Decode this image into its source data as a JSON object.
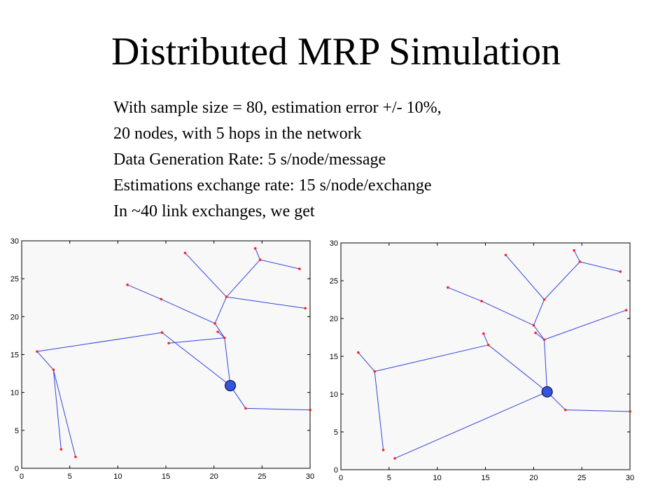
{
  "slide": {
    "title": "Distributed MRP Simulation",
    "description": [
      "With sample size = 80, estimation error +/- 10%,",
      "20 nodes, with 5 hops in the network",
      "Data Generation Rate:  5 s/node/message",
      "Estimations exchange rate:  15 s/node/exchange",
      "In ~40 link exchanges, we get"
    ]
  },
  "colors": {
    "edge": "#3344dd",
    "node": "#ff2222",
    "root_fill": "#3355dd",
    "root_stroke": "#000033",
    "plot_bg": "#f8f8f8"
  },
  "plots": [
    {
      "id": "left",
      "xlim": [
        0,
        30
      ],
      "ylim": [
        0,
        30
      ],
      "xticks": [
        "0",
        "5",
        "10",
        "15",
        "20",
        "25",
        "30"
      ],
      "yticks": [
        "0",
        "5",
        "10",
        "15",
        "20",
        "25",
        "30"
      ],
      "root": [
        21.7,
        10.9
      ],
      "nodes": [
        [
          1.6,
          15.4
        ],
        [
          3.3,
          13.0
        ],
        [
          4.1,
          2.5
        ],
        [
          5.6,
          1.5
        ],
        [
          11.0,
          24.2
        ],
        [
          14.5,
          22.3
        ],
        [
          14.6,
          17.9
        ],
        [
          15.3,
          16.5
        ],
        [
          17.0,
          28.4
        ],
        [
          20.1,
          19.1
        ],
        [
          20.4,
          18.0
        ],
        [
          21.1,
          17.2
        ],
        [
          21.3,
          22.6
        ],
        [
          23.3,
          7.9
        ],
        [
          24.3,
          29.0
        ],
        [
          24.8,
          27.5
        ],
        [
          28.9,
          26.3
        ],
        [
          29.5,
          21.1
        ],
        [
          30.0,
          7.7
        ]
      ],
      "edges": [
        [
          [
            1.6,
            15.4
          ],
          [
            14.6,
            17.9
          ]
        ],
        [
          [
            14.6,
            17.9
          ],
          [
            21.7,
            10.9
          ]
        ],
        [
          [
            1.6,
            15.4
          ],
          [
            3.3,
            13.0
          ]
        ],
        [
          [
            3.3,
            13.0
          ],
          [
            4.1,
            2.5
          ]
        ],
        [
          [
            3.3,
            13.0
          ],
          [
            5.6,
            1.5
          ]
        ],
        [
          [
            11.0,
            24.2
          ],
          [
            14.5,
            22.3
          ]
        ],
        [
          [
            14.5,
            22.3
          ],
          [
            20.1,
            19.1
          ]
        ],
        [
          [
            17.0,
            28.4
          ],
          [
            21.3,
            22.6
          ]
        ],
        [
          [
            20.1,
            19.1
          ],
          [
            21.3,
            22.6
          ]
        ],
        [
          [
            20.1,
            19.1
          ],
          [
            21.1,
            17.2
          ]
        ],
        [
          [
            20.4,
            18.0
          ],
          [
            21.1,
            17.2
          ]
        ],
        [
          [
            15.3,
            16.5
          ],
          [
            21.1,
            17.2
          ]
        ],
        [
          [
            21.1,
            17.2
          ],
          [
            21.7,
            10.9
          ]
        ],
        [
          [
            21.3,
            22.6
          ],
          [
            24.8,
            27.5
          ]
        ],
        [
          [
            24.3,
            29.0
          ],
          [
            24.8,
            27.5
          ]
        ],
        [
          [
            24.8,
            27.5
          ],
          [
            28.9,
            26.3
          ]
        ],
        [
          [
            21.3,
            22.6
          ],
          [
            29.5,
            21.1
          ]
        ],
        [
          [
            21.7,
            10.9
          ],
          [
            23.3,
            7.9
          ]
        ],
        [
          [
            23.3,
            7.9
          ],
          [
            30.0,
            7.7
          ]
        ]
      ]
    },
    {
      "id": "right",
      "xlim": [
        0,
        30
      ],
      "ylim": [
        0,
        30
      ],
      "xticks": [
        "0",
        "5",
        "10",
        "15",
        "20",
        "25",
        "30"
      ],
      "yticks": [
        "0",
        "5",
        "10",
        "15",
        "20",
        "25",
        "30"
      ],
      "root": [
        21.4,
        10.3
      ],
      "nodes": [
        [
          1.8,
          15.5
        ],
        [
          3.5,
          13.0
        ],
        [
          4.4,
          2.6
        ],
        [
          5.6,
          1.5
        ],
        [
          11.1,
          24.1
        ],
        [
          14.6,
          22.3
        ],
        [
          14.8,
          18.0
        ],
        [
          15.3,
          16.5
        ],
        [
          17.1,
          28.4
        ],
        [
          20.0,
          19.1
        ],
        [
          20.2,
          18.1
        ],
        [
          21.1,
          17.2
        ],
        [
          21.1,
          22.5
        ],
        [
          23.3,
          7.9
        ],
        [
          24.2,
          29.0
        ],
        [
          24.8,
          27.5
        ],
        [
          29.0,
          26.2
        ],
        [
          29.6,
          21.1
        ],
        [
          30.0,
          7.7
        ]
      ],
      "edges": [
        [
          [
            1.8,
            15.5
          ],
          [
            3.5,
            13.0
          ]
        ],
        [
          [
            3.5,
            13.0
          ],
          [
            4.4,
            2.6
          ]
        ],
        [
          [
            3.5,
            13.0
          ],
          [
            15.3,
            16.5
          ]
        ],
        [
          [
            14.8,
            18.0
          ],
          [
            15.3,
            16.5
          ]
        ],
        [
          [
            15.3,
            16.5
          ],
          [
            21.4,
            10.3
          ]
        ],
        [
          [
            5.6,
            1.5
          ],
          [
            21.4,
            10.3
          ]
        ],
        [
          [
            11.1,
            24.1
          ],
          [
            14.6,
            22.3
          ]
        ],
        [
          [
            14.6,
            22.3
          ],
          [
            20.0,
            19.1
          ]
        ],
        [
          [
            17.1,
            28.4
          ],
          [
            21.1,
            22.5
          ]
        ],
        [
          [
            21.1,
            22.5
          ],
          [
            20.0,
            19.1
          ]
        ],
        [
          [
            20.0,
            19.1
          ],
          [
            21.1,
            17.2
          ]
        ],
        [
          [
            20.2,
            18.1
          ],
          [
            21.1,
            17.2
          ]
        ],
        [
          [
            21.1,
            17.2
          ],
          [
            29.6,
            21.1
          ]
        ],
        [
          [
            21.1,
            17.2
          ],
          [
            21.4,
            10.3
          ]
        ],
        [
          [
            21.1,
            22.5
          ],
          [
            24.8,
            27.5
          ]
        ],
        [
          [
            24.2,
            29.0
          ],
          [
            24.8,
            27.5
          ]
        ],
        [
          [
            24.8,
            27.5
          ],
          [
            29.0,
            26.2
          ]
        ],
        [
          [
            21.4,
            10.3
          ],
          [
            23.3,
            7.9
          ]
        ],
        [
          [
            23.3,
            7.9
          ],
          [
            30.0,
            7.7
          ]
        ]
      ]
    }
  ]
}
